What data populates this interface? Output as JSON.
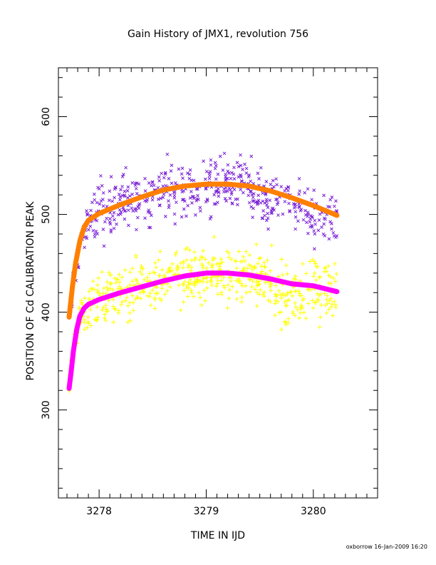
{
  "chart_data": {
    "type": "scatter",
    "title": "Gain History of JMX1, revolution 756",
    "xlabel": "TIME IN IJD",
    "ylabel": "POSITION OF Cd CALIBRATION PEAK",
    "xlim": [
      3277.62,
      3280.6
    ],
    "ylim": [
      210,
      650
    ],
    "xticks": [
      3278,
      3279,
      3280
    ],
    "yticks": [
      300,
      400,
      500,
      600
    ],
    "grid": false,
    "legend": "none",
    "series": [
      {
        "marker": "x",
        "color": "#7a1fd6",
        "kind": "points",
        "x_range": [
          3277.72,
          3280.22
        ],
        "fit": [
          [
            3277.72,
            400
          ],
          [
            3277.78,
            445
          ],
          [
            3277.82,
            470
          ],
          [
            3277.9,
            492
          ],
          [
            3278.0,
            503
          ],
          [
            3278.3,
            515
          ],
          [
            3278.6,
            524
          ],
          [
            3278.9,
            529
          ],
          [
            3279.15,
            531
          ],
          [
            3279.4,
            528
          ],
          [
            3279.7,
            520
          ],
          [
            3280.0,
            509
          ],
          [
            3280.22,
            500
          ]
        ],
        "dips": [
          [
            3280.05,
            -15
          ],
          [
            3279.55,
            -8
          ]
        ],
        "scatter": 14,
        "count": 520
      },
      {
        "marker": "+",
        "color": "#ffff00",
        "kind": "points",
        "x_range": [
          3277.72,
          3280.22
        ],
        "fit": [
          [
            3277.72,
            330
          ],
          [
            3277.75,
            355
          ],
          [
            3277.8,
            385
          ],
          [
            3277.86,
            403
          ],
          [
            3278.0,
            413
          ],
          [
            3278.3,
            424
          ],
          [
            3278.6,
            432
          ],
          [
            3278.9,
            438
          ],
          [
            3279.15,
            440
          ],
          [
            3279.4,
            438
          ],
          [
            3279.7,
            432
          ],
          [
            3280.0,
            428
          ],
          [
            3280.22,
            422
          ]
        ],
        "dips": [
          [
            3279.75,
            -20
          ]
        ],
        "scatter": 14,
        "count": 620
      },
      {
        "marker": "line",
        "color": "#ff7f00",
        "kind": "fit",
        "x": [
          3277.72,
          3277.75,
          3277.78,
          3277.82,
          3277.86,
          3277.9,
          3278.0,
          3278.2,
          3278.4,
          3278.6,
          3278.8,
          3279.0,
          3279.2,
          3279.4,
          3279.6,
          3279.8,
          3280.0,
          3280.22
        ],
        "y": [
          395,
          425,
          450,
          473,
          487,
          494,
          501,
          510,
          518,
          525,
          529,
          531,
          531,
          529,
          524,
          517,
          509,
          499
        ]
      },
      {
        "marker": "line",
        "color": "#ff00ff",
        "kind": "fit",
        "x": [
          3277.72,
          3277.74,
          3277.76,
          3277.79,
          3277.82,
          3277.86,
          3277.9,
          3278.0,
          3278.2,
          3278.4,
          3278.6,
          3278.8,
          3279.0,
          3279.2,
          3279.4,
          3279.6,
          3279.8,
          3280.0,
          3280.22
        ],
        "y": [
          322,
          340,
          360,
          382,
          396,
          404,
          408,
          413,
          420,
          426,
          432,
          437,
          440,
          440,
          438,
          434,
          429,
          427,
          421
        ]
      }
    ]
  },
  "footer": {
    "credit": "oxborrow 16-Jan-2009 16:20"
  }
}
